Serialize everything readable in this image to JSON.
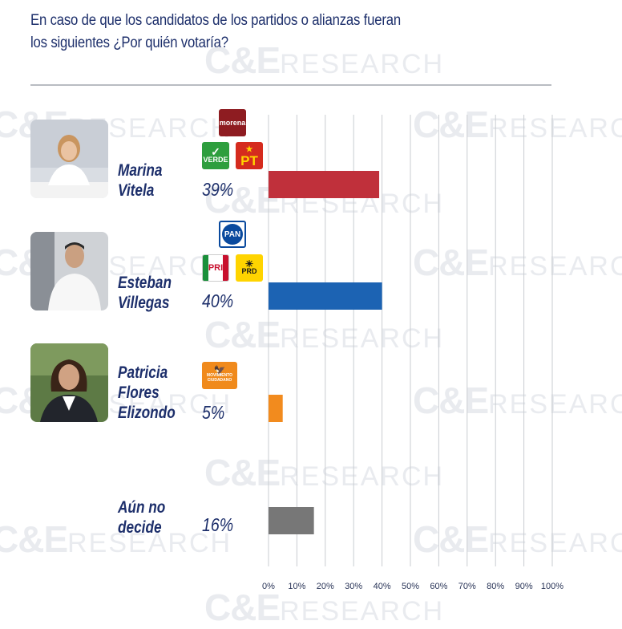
{
  "title": {
    "line1": "En caso de que los candidatos de los partidos o alianzas fueran",
    "line2": "los siguientes ¿Por quién votaría?"
  },
  "watermark": {
    "part_a": "C&E",
    "part_b": "RESEARCH"
  },
  "candidates": [
    {
      "name_line1": "Marina",
      "name_line2": "Vitela",
      "name_line3": "",
      "pct_label": "39%",
      "parties": [
        "morena",
        "VERDE",
        "PT"
      ]
    },
    {
      "name_line1": "Esteban",
      "name_line2": "Villegas",
      "name_line3": "",
      "pct_label": "40%",
      "parties": [
        "PAN",
        "PRI",
        "PRD"
      ]
    },
    {
      "name_line1": "Patricia",
      "name_line2": "Flores",
      "name_line3": "Elizondo",
      "pct_label": "5%",
      "parties": [
        "MOVIMIENTO CIUDADANO"
      ]
    },
    {
      "name_line1": "Aún no",
      "name_line2": "decide",
      "name_line3": "",
      "pct_label": "16%",
      "parties": []
    }
  ],
  "logos": {
    "morena": "morena",
    "verde": "VERDE",
    "pt": "PT",
    "pan": "PAN",
    "pri": "PRI",
    "prd": "PRD",
    "mc": "MOVIMIENTO CIUDADANO"
  },
  "chart_data": {
    "type": "bar",
    "orientation": "horizontal",
    "categories": [
      "Marina Vitela",
      "Esteban Villegas",
      "Patricia Flores Elizondo",
      "Aún no decide"
    ],
    "values": [
      39,
      40,
      5,
      16
    ],
    "colors": [
      "#c0303b",
      "#1c63b3",
      "#f28b1e",
      "#777777"
    ],
    "xlim": [
      0,
      100
    ],
    "xticks": [
      "0%",
      "10%",
      "20%",
      "30%",
      "40%",
      "50%",
      "60%",
      "70%",
      "80%",
      "90%",
      "100%"
    ],
    "grid": true,
    "title": "",
    "xlabel": "",
    "ylabel": ""
  }
}
